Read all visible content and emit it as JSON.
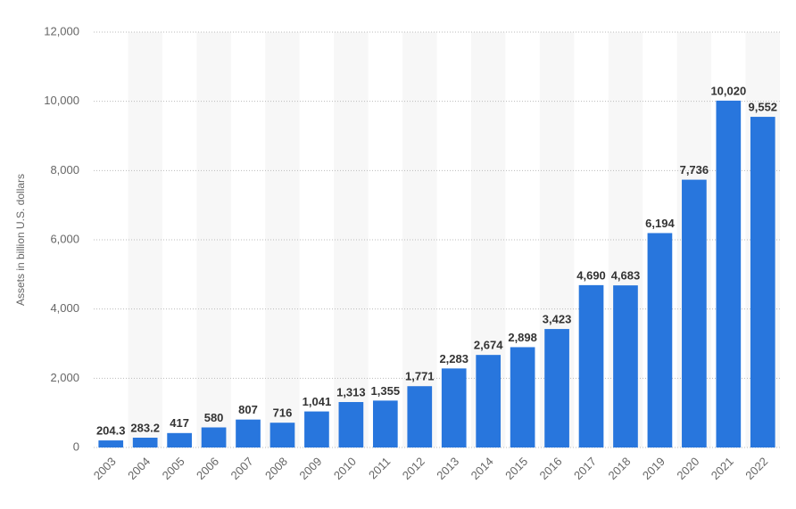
{
  "chart_data": {
    "type": "bar",
    "y_label": "Assets in billion U.S. dollars",
    "categories": [
      "2003",
      "2004",
      "2005",
      "2006",
      "2007",
      "2008",
      "2009",
      "2010",
      "2011",
      "2012",
      "2013",
      "2014",
      "2015",
      "2016",
      "2017",
      "2018",
      "2019",
      "2020",
      "2021",
      "2022"
    ],
    "values": [
      204.3,
      283.2,
      417,
      580,
      807,
      716,
      1041,
      1313,
      1355,
      1771,
      2283,
      2674,
      2898,
      3423,
      4690,
      4683,
      6194,
      7736,
      10020,
      9552
    ],
    "value_labels": [
      "204.3",
      "283.2",
      "417",
      "580",
      "807",
      "716",
      "1,041",
      "1,313",
      "1,355",
      "1,771",
      "2,283",
      "2,674",
      "2,898",
      "3,423",
      "4,690",
      "4,683",
      "6,194",
      "7,736",
      "10,020",
      "9,552"
    ],
    "color": "#2876dd",
    "ylim": [
      0,
      12000
    ],
    "yticks": [
      0,
      {
        "value": 2000,
        "label": "2,000"
      },
      {
        "value": 4000,
        "label": "4,000"
      },
      {
        "value": 6000,
        "label": "6,000"
      },
      {
        "value": 8000,
        "label": "8,000"
      },
      {
        "value": 10000,
        "label": "10,000"
      },
      {
        "value": 12000,
        "label": "12,000"
      }
    ],
    "grid": true
  }
}
